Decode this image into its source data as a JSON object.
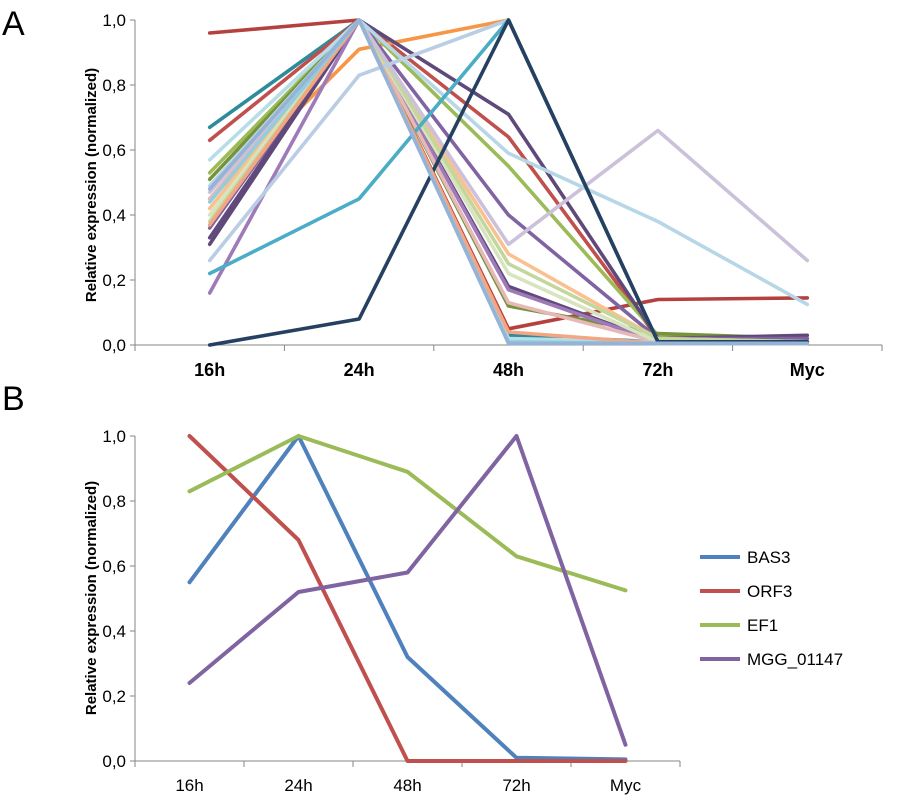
{
  "chart_data": [
    {
      "panel": "A",
      "type": "line",
      "title": "",
      "xlabel": "",
      "ylabel": "Relative expression (normalized)",
      "categories": [
        "16h",
        "24h",
        "48h",
        "72h",
        "Myc"
      ],
      "ylim": [
        0,
        1
      ],
      "yticks": [
        "0,0",
        "0,2",
        "0,4",
        "0,6",
        "0,8",
        "1,0"
      ],
      "legend": "none",
      "grid": false,
      "series": [
        {
          "color": "#B5413F",
          "values": [
            0.96,
            1.0,
            0.05,
            0.14,
            0.145
          ]
        },
        {
          "color": "#2E8B9B",
          "values": [
            0.67,
            1.0,
            0.03,
            0.01,
            0.01
          ]
        },
        {
          "color": "#C0504D",
          "values": [
            0.63,
            1.0,
            0.64,
            0.02,
            0.01
          ]
        },
        {
          "color": "#F79646",
          "values": [
            0.45,
            0.91,
            1.0,
            0.01,
            0.01
          ]
        },
        {
          "color": "#9BBB59",
          "values": [
            0.53,
            1.0,
            0.55,
            0.03,
            0.02
          ]
        },
        {
          "color": "#76933C",
          "values": [
            0.51,
            1.0,
            0.12,
            0.035,
            0.02
          ]
        },
        {
          "color": "#5F497A",
          "values": [
            0.31,
            1.0,
            0.71,
            0.02,
            0.03
          ]
        },
        {
          "color": "#8064A2",
          "values": [
            0.36,
            1.0,
            0.4,
            0.02,
            0.02
          ]
        },
        {
          "color": "#604A7B",
          "values": [
            0.33,
            1.0,
            0.18,
            0.01,
            0.01
          ]
        },
        {
          "color": "#9E7BB8",
          "values": [
            0.16,
            1.0,
            0.17,
            0.01,
            0.01
          ]
        },
        {
          "color": "#E6B9B8",
          "values": [
            0.45,
            1.0,
            0.13,
            0.01,
            0.01
          ]
        },
        {
          "color": "#FAC090",
          "values": [
            0.42,
            1.0,
            0.28,
            0.02,
            0.01
          ]
        },
        {
          "color": "#D7E4BD",
          "values": [
            0.4,
            1.0,
            0.22,
            0.01,
            0.01
          ]
        },
        {
          "color": "#C3D69B",
          "values": [
            0.38,
            1.0,
            0.25,
            0.02,
            0.01
          ]
        },
        {
          "color": "#B7DEE8",
          "values": [
            0.57,
            1.0,
            0.02,
            0.01,
            0.005
          ]
        },
        {
          "color": "#CCC1DA",
          "values": [
            0.47,
            1.0,
            0.31,
            0.66,
            0.26
          ]
        },
        {
          "color": "#B9CDE5",
          "values": [
            0.26,
            0.83,
            1.0,
            0.01,
            0.01
          ]
        },
        {
          "color": "#B7D7E8",
          "values": [
            0.49,
            1.0,
            0.59,
            0.38,
            0.125
          ]
        },
        {
          "color": "#4BACC6",
          "values": [
            0.22,
            0.45,
            1.0,
            0.01,
            0.01
          ]
        },
        {
          "color": "#254061",
          "values": [
            0.0,
            0.08,
            1.0,
            0.01,
            0.01
          ]
        },
        {
          "color": "#F4A582",
          "values": [
            0.37,
            1.0,
            0.04,
            0.005,
            0.005
          ]
        },
        {
          "color": "#93CDDD",
          "values": [
            0.44,
            1.0,
            0.01,
            0.005,
            0.005
          ]
        },
        {
          "color": "#95B3D7",
          "values": [
            0.48,
            1.0,
            0.005,
            0.005,
            0.005
          ]
        }
      ]
    },
    {
      "panel": "B",
      "type": "line",
      "title": "",
      "xlabel": "",
      "ylabel": "Relative expression (normalized)",
      "categories": [
        "16h",
        "24h",
        "48h",
        "72h",
        "Myc"
      ],
      "ylim": [
        0,
        1
      ],
      "yticks": [
        "0,0",
        "0,2",
        "0,4",
        "0,6",
        "0,8",
        "1,0"
      ],
      "legend": "right",
      "grid": false,
      "series": [
        {
          "name": "BAS3",
          "color": "#4F81BD",
          "values": [
            0.55,
            1.0,
            0.32,
            0.01,
            0.005
          ]
        },
        {
          "name": "ORF3",
          "color": "#C0504D",
          "values": [
            1.0,
            0.68,
            0.0,
            0.0,
            0.0
          ]
        },
        {
          "name": "EF1",
          "color": "#9BBB59",
          "values": [
            0.83,
            1.0,
            0.89,
            0.63,
            0.525
          ]
        },
        {
          "name": "MGG_01147",
          "color": "#8064A2",
          "values": [
            0.24,
            0.52,
            0.58,
            1.0,
            0.05
          ]
        }
      ]
    }
  ]
}
